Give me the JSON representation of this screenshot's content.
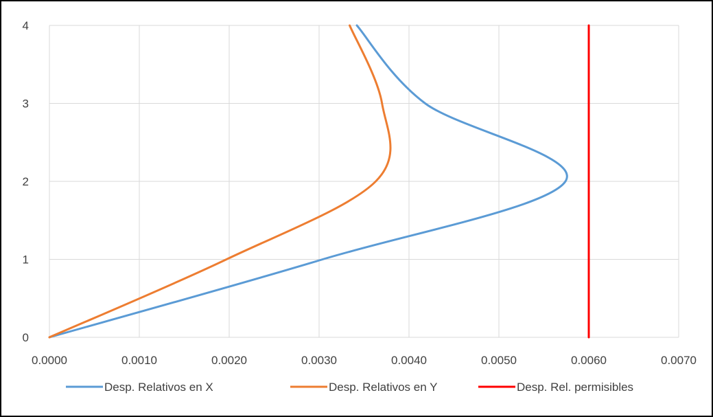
{
  "chart_data": {
    "type": "line",
    "title": "",
    "xlabel": "",
    "ylabel": "",
    "xlim": [
      0,
      0.007
    ],
    "ylim": [
      0,
      4
    ],
    "x_ticks": [
      "0.0000",
      "0.0010",
      "0.0020",
      "0.0030",
      "0.0040",
      "0.0050",
      "0.0060",
      "0.0070"
    ],
    "y_ticks": [
      "0",
      "1",
      "2",
      "3",
      "4"
    ],
    "grid": true,
    "legend_position": "bottom",
    "series": [
      {
        "name": "Desp. Relativos en X",
        "color": "#5b9bd5",
        "points": [
          [
            0,
            0
          ],
          [
            0.00304,
            1
          ],
          [
            0.00574,
            2
          ],
          [
            0.00418,
            3
          ],
          [
            0.00342,
            4
          ]
        ]
      },
      {
        "name": "Desp. Relativos en Y",
        "color": "#ed7d31",
        "points": [
          [
            0,
            0
          ],
          [
            0.00197,
            1
          ],
          [
            0.00363,
            2
          ],
          [
            0.0037,
            3
          ],
          [
            0.00334,
            4
          ]
        ]
      },
      {
        "name": "Desp. Rel. permisibles",
        "color": "#ff0000",
        "points": [
          [
            0.006,
            0
          ],
          [
            0.006,
            4
          ]
        ]
      }
    ]
  }
}
